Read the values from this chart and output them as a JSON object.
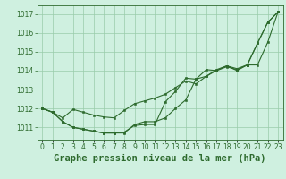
{
  "title": "Graphe pression niveau de la mer (hPa)",
  "x_labels": [
    "0",
    "1",
    "2",
    "3",
    "4",
    "5",
    "6",
    "7",
    "8",
    "9",
    "10",
    "11",
    "12",
    "13",
    "14",
    "15",
    "16",
    "17",
    "18",
    "19",
    "20",
    "21",
    "22",
    "23"
  ],
  "x_values": [
    0,
    1,
    2,
    3,
    4,
    5,
    6,
    7,
    8,
    9,
    10,
    11,
    12,
    13,
    14,
    15,
    16,
    17,
    18,
    19,
    20,
    21,
    22,
    23
  ],
  "series1": [
    1012.0,
    1011.8,
    1011.3,
    1011.0,
    1010.9,
    1010.8,
    1010.7,
    1010.7,
    1010.7,
    1011.15,
    1011.3,
    1011.3,
    1011.5,
    1012.0,
    1012.45,
    1013.55,
    1013.7,
    1014.05,
    1014.25,
    1014.0,
    1014.3,
    1014.3,
    1015.5,
    1017.1
  ],
  "series2": [
    1012.0,
    1011.8,
    1011.3,
    1011.0,
    1010.9,
    1010.8,
    1010.7,
    1010.7,
    1010.75,
    1011.1,
    1011.15,
    1011.15,
    1012.35,
    1012.9,
    1013.6,
    1013.55,
    1014.05,
    1014.0,
    1014.25,
    1014.1,
    1014.3,
    1015.45,
    1016.55,
    1017.1
  ],
  "series3": [
    1012.0,
    1011.8,
    1011.5,
    1011.95,
    1011.8,
    1011.65,
    1011.55,
    1011.5,
    1011.9,
    1012.25,
    1012.4,
    1012.55,
    1012.75,
    1013.1,
    1013.45,
    1013.3,
    1013.7,
    1014.0,
    1014.2,
    1014.05,
    1014.3,
    1015.45,
    1016.55,
    1017.1
  ],
  "line_color": "#2d6a2d",
  "bg_color": "#cff0e0",
  "grid_color": "#99ccaa",
  "ylim_min": 1010.35,
  "ylim_max": 1017.45,
  "yticks": [
    1011,
    1012,
    1013,
    1014,
    1015,
    1016,
    1017
  ],
  "title_fontsize": 7.5,
  "tick_fontsize": 5.5,
  "marker_size": 2.0,
  "line_width": 0.8
}
